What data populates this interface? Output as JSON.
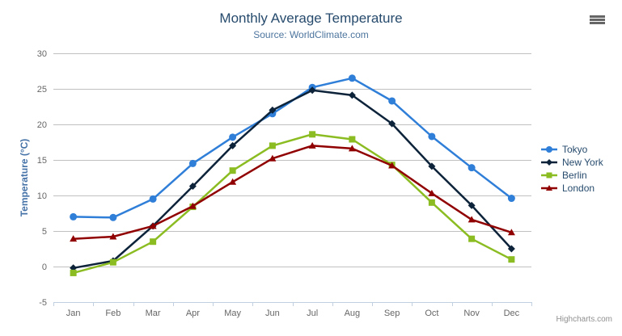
{
  "chart_data": {
    "type": "line",
    "title": "Monthly Average Temperature",
    "subtitle": "Source: WorldClimate.com",
    "xlabel": "",
    "ylabel": "Temperature (°C)",
    "categories": [
      "Jan",
      "Feb",
      "Mar",
      "Apr",
      "May",
      "Jun",
      "Jul",
      "Aug",
      "Sep",
      "Oct",
      "Nov",
      "Dec"
    ],
    "yticks": [
      -5,
      0,
      5,
      10,
      15,
      20,
      25,
      30
    ],
    "ylim": [
      -5,
      30
    ],
    "grid": true,
    "legend_position": "right",
    "series": [
      {
        "name": "Tokyo",
        "color": "#2f7ed8",
        "marker": "circle",
        "values": [
          7.0,
          6.9,
          9.5,
          14.5,
          18.2,
          21.5,
          25.2,
          26.5,
          23.3,
          18.3,
          13.9,
          9.6
        ]
      },
      {
        "name": "New York",
        "color": "#0d233a",
        "marker": "diamond",
        "values": [
          -0.2,
          0.8,
          5.7,
          11.3,
          17.0,
          22.0,
          24.8,
          24.1,
          20.1,
          14.1,
          8.6,
          2.5
        ]
      },
      {
        "name": "Berlin",
        "color": "#8bbc21",
        "marker": "square",
        "values": [
          -0.9,
          0.6,
          3.5,
          8.4,
          13.5,
          17.0,
          18.6,
          17.9,
          14.3,
          9.0,
          3.9,
          1.0
        ]
      },
      {
        "name": "London",
        "color": "#910000",
        "marker": "triangle",
        "values": [
          3.9,
          4.2,
          5.7,
          8.5,
          11.9,
          15.2,
          17.0,
          16.6,
          14.2,
          10.3,
          6.6,
          4.8
        ]
      }
    ]
  },
  "credits": {
    "label": "Highcharts.com"
  },
  "menu": {
    "icon": "hamburger-icon"
  },
  "colors": {
    "background": "#ffffff",
    "title": "#274b6d",
    "subtitle": "#4d759e",
    "grid_line": "#c0c0c0",
    "axis_line": "#c0d0e0",
    "axis_label": "#666666",
    "y_axis_title": "#4572a7",
    "legend_text": "#274b6d",
    "credits_text": "#909090",
    "menu_icon": "#666666"
  }
}
